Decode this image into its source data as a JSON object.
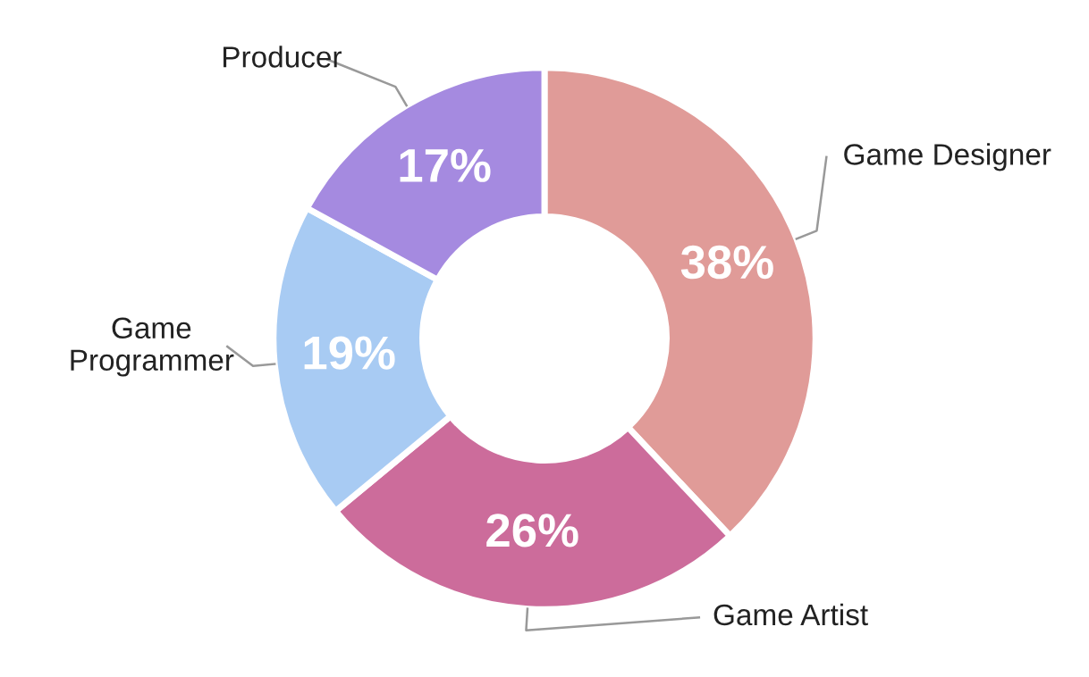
{
  "chart_data": {
    "type": "donut",
    "categories": [
      "Game Designer",
      "Game Artist",
      "Game Programmer",
      "Producer"
    ],
    "values": [
      38,
      26,
      19,
      17
    ],
    "value_labels": [
      "38%",
      "26%",
      "19%",
      "17%"
    ],
    "colors": [
      "#e09b98",
      "#cc6c9b",
      "#a8cbf3",
      "#a58ae0"
    ],
    "legend": false
  }
}
